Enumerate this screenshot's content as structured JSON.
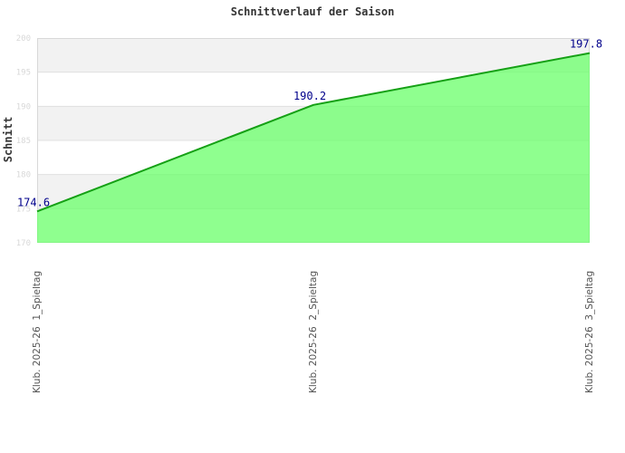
{
  "chart_data": {
    "type": "area",
    "title": "Schnittverlauf der Saison",
    "xlabel": "",
    "ylabel": "Schnitt",
    "categories": [
      "Klub. 2025-26  1_Spieltag",
      "Klub. 2025-26  2_Spieltag",
      "Klub. 2025-26  3_Spieltag"
    ],
    "values": [
      174.6,
      190.2,
      197.8
    ],
    "point_labels": [
      "174.6",
      "190.2",
      "197.8"
    ],
    "ylim": [
      170,
      200
    ],
    "yticks": [
      200,
      195,
      190,
      185,
      180,
      175,
      170
    ],
    "grid": "horizontal",
    "plot_background": "alternating-bands",
    "legend": "none",
    "colors": {
      "area_fill": "#66ff66",
      "area_opacity": 0.73,
      "line": "#15a015",
      "point_label": "#00008b",
      "tick_label": "#d8d8d8",
      "band": "#f2f2f2",
      "grid_line": "#e0e0e0",
      "plot_border": "#d8d8d8",
      "category_label": "#555555",
      "title_text": "#333333"
    }
  }
}
